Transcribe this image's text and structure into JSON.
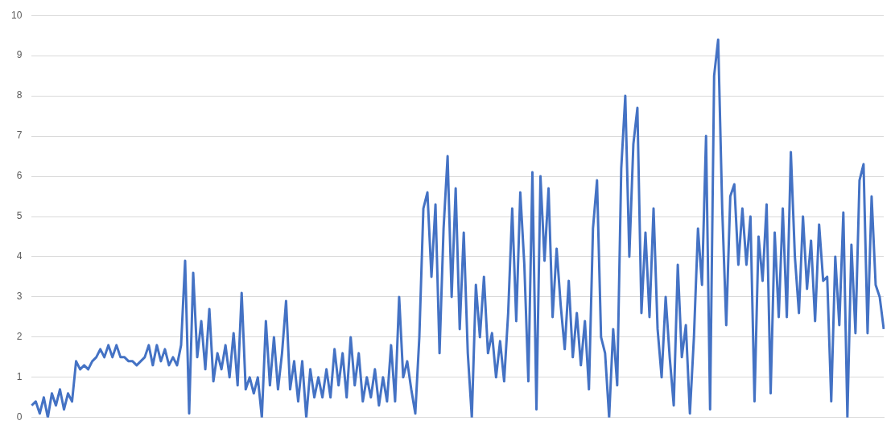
{
  "chart_data": {
    "type": "line",
    "tick_labels": "y",
    "grid": "y",
    "marker": "none",
    "line_style": "solid",
    "ylim": [
      0,
      10
    ],
    "yticks": [
      0,
      1,
      2,
      3,
      4,
      5,
      6,
      7,
      8,
      9,
      10
    ],
    "categories": [
      null,
      null,
      null,
      null,
      null,
      null,
      null,
      null,
      null,
      null,
      null,
      null,
      null,
      null,
      null,
      null,
      null,
      null,
      null,
      null,
      null,
      null,
      null,
      null,
      null,
      null,
      null,
      null,
      null,
      null,
      null,
      null,
      null,
      null,
      null,
      null,
      null,
      null,
      null,
      null,
      null,
      null,
      null,
      null,
      null,
      null,
      null,
      null,
      null,
      null,
      null,
      null,
      null,
      null,
      null,
      null,
      null,
      null,
      null,
      null,
      null,
      null,
      null,
      null,
      null,
      null,
      null,
      null,
      null,
      null,
      null,
      null,
      null,
      null,
      null,
      null,
      null,
      null,
      null,
      null,
      null,
      null,
      null,
      null,
      null,
      null,
      null,
      null,
      null,
      null,
      null,
      null,
      null,
      null,
      null,
      null,
      null,
      null,
      null,
      null,
      null,
      null,
      null,
      null,
      null,
      null,
      null,
      null,
      null,
      null,
      null,
      null,
      null,
      null,
      null,
      null,
      null,
      null,
      null,
      null,
      null,
      null,
      null,
      null,
      null,
      null,
      null,
      null,
      null,
      null,
      null,
      null,
      null,
      null,
      null,
      null,
      null,
      null,
      null,
      null,
      null,
      null,
      null,
      null,
      null,
      null,
      null,
      null,
      null,
      null,
      null,
      null,
      null,
      null,
      null,
      null,
      null,
      null,
      null,
      null,
      null,
      null,
      null,
      null,
      null,
      null,
      null,
      null,
      null,
      null,
      null,
      null,
      null,
      null,
      null,
      null,
      null,
      null,
      null,
      null,
      null,
      null,
      null,
      null,
      null,
      null,
      null,
      null,
      null,
      null,
      null,
      null,
      null,
      null,
      null,
      null,
      null,
      null,
      null,
      null,
      null,
      null,
      null,
      null,
      null,
      null,
      null,
      null,
      null,
      null,
      null,
      null
    ],
    "series": [
      {
        "color": "#4472c4",
        "values": [
          0.3,
          0.4,
          0.1,
          0.5,
          0,
          0.6,
          0.3,
          0.7,
          0.2,
          0.6,
          0.4,
          1.4,
          1.2,
          1.3,
          1.2,
          1.4,
          1.5,
          1.7,
          1.5,
          1.8,
          1.5,
          1.8,
          1.5,
          1.5,
          1.4,
          1.4,
          1.3,
          1.4,
          1.5,
          1.8,
          1.3,
          1.8,
          1.4,
          1.7,
          1.3,
          1.5,
          1.3,
          1.8,
          3.9,
          0.1,
          3.6,
          1.5,
          2.4,
          1.2,
          2.7,
          0.9,
          1.6,
          1.2,
          1.8,
          1.0,
          2.1,
          0.8,
          3.1,
          0.7,
          1.0,
          0.6,
          1.0,
          0,
          2.4,
          0.8,
          2.0,
          0.7,
          1.6,
          2.9,
          0.7,
          1.4,
          0.4,
          1.4,
          0,
          1.2,
          0.5,
          1.0,
          0.5,
          1.2,
          0.5,
          1.7,
          0.8,
          1.6,
          0.5,
          2.0,
          0.8,
          1.6,
          0.4,
          1.0,
          0.5,
          1.2,
          0.3,
          1.0,
          0.4,
          1.8,
          0.4,
          3.0,
          1.0,
          1.4,
          0.7,
          0.1,
          2.0,
          5.2,
          5.6,
          3.5,
          5.3,
          1.6,
          4.7,
          6.5,
          3.0,
          5.7,
          2.2,
          4.6,
          1.6,
          0,
          3.3,
          2.0,
          3.5,
          1.6,
          2.1,
          1.0,
          1.9,
          0.9,
          2.6,
          5.2,
          2.4,
          5.6,
          3.8,
          0.9,
          6.1,
          0.2,
          6.0,
          3.9,
          5.7,
          2.5,
          4.2,
          2.8,
          1.7,
          3.4,
          1.5,
          2.6,
          1.3,
          2.4,
          0.7,
          4.7,
          5.9,
          2.0,
          1.6,
          0,
          2.2,
          0.8,
          6.2,
          8.0,
          4.0,
          6.8,
          7.7,
          2.6,
          4.6,
          2.5,
          5.2,
          2.2,
          1.0,
          3.0,
          1.5,
          0.3,
          3.8,
          1.5,
          2.3,
          0.1,
          2.0,
          4.7,
          3.3,
          7.0,
          0.2,
          8.5,
          9.4,
          5.2,
          2.3,
          5.5,
          5.8,
          3.8,
          5.2,
          3.8,
          5.0,
          0.4,
          4.5,
          3.4,
          5.3,
          0.6,
          4.6,
          2.5,
          5.2,
          2.5,
          6.6,
          4.0,
          2.6,
          5.0,
          3.2,
          4.4,
          2.4,
          4.8,
          3.4,
          3.5,
          0.4,
          4.0,
          2.3,
          5.1,
          0,
          4.3,
          2.1,
          5.9,
          6.3,
          2.1,
          5.5,
          3.3,
          3.0,
          2.2
        ]
      }
    ]
  }
}
